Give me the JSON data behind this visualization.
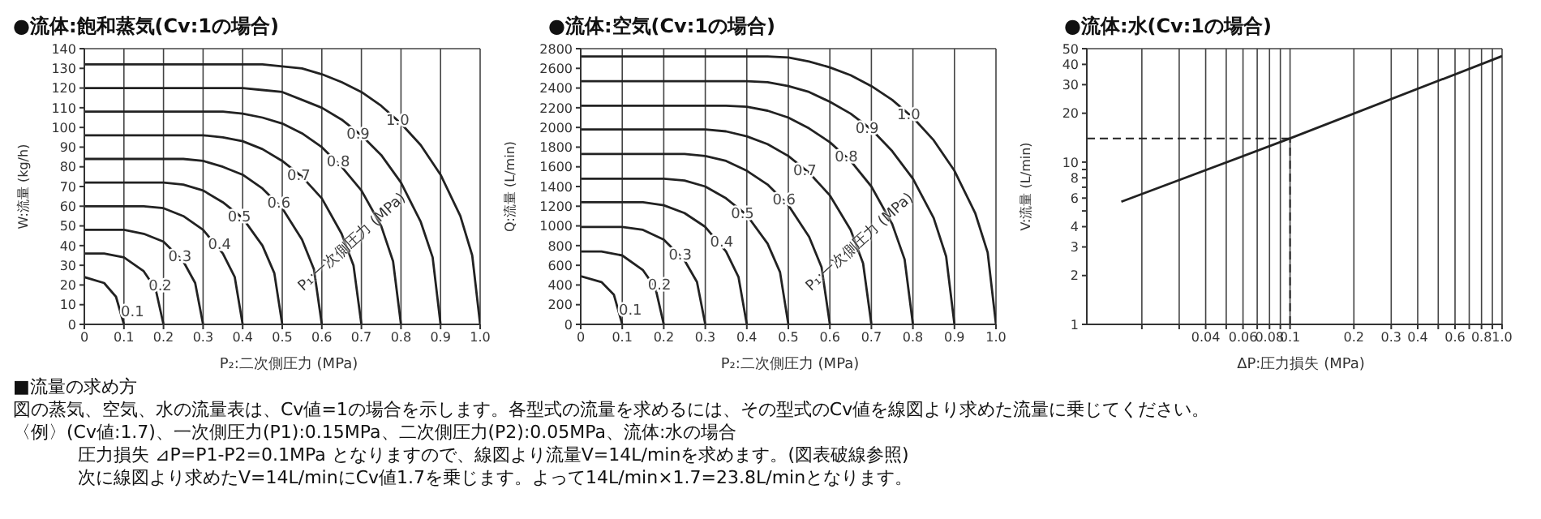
{
  "chart_data": [
    {
      "type": "line",
      "title": "●流体:飽和蒸気(Cv:1の場合)",
      "xlabel": "P₂:二次側圧力 (MPa)",
      "ylabel": "W:流量 (kg/h)",
      "annotations": [
        "P₁:一次側圧力 (MPa)"
      ],
      "xlim": [
        0,
        1
      ],
      "xticks": [
        0,
        0.1,
        0.2,
        0.3,
        0.4,
        0.5,
        0.6,
        0.7,
        0.8,
        0.9,
        {
          "value": 1,
          "label": "1.0"
        }
      ],
      "ylim": [
        0,
        140
      ],
      "yticks": [
        0,
        10,
        20,
        30,
        40,
        50,
        60,
        70,
        80,
        90,
        100,
        110,
        120,
        130,
        140
      ],
      "grid": true,
      "legend": false,
      "marker": "none",
      "series": [
        {
          "name": "0.1",
          "color": "#222222",
          "x": [
            0,
            0.05,
            0.08,
            0.1
          ],
          "values": [
            24,
            21,
            14,
            0
          ]
        },
        {
          "name": "0.2",
          "color": "#222222",
          "x": [
            0,
            0.05,
            0.1,
            0.15,
            0.18,
            0.2
          ],
          "values": [
            36,
            36,
            34,
            27,
            18,
            0
          ]
        },
        {
          "name": "0.3",
          "color": "#222222",
          "x": [
            0,
            0.1,
            0.15,
            0.2,
            0.25,
            0.28,
            0.3
          ],
          "values": [
            48,
            48,
            46,
            42,
            32,
            21,
            0
          ]
        },
        {
          "name": "0.4",
          "color": "#222222",
          "x": [
            0,
            0.15,
            0.2,
            0.25,
            0.3,
            0.35,
            0.38,
            0.4
          ],
          "values": [
            60,
            60,
            59,
            55,
            48,
            36,
            24,
            0
          ]
        },
        {
          "name": "0.5",
          "color": "#222222",
          "x": [
            0,
            0.2,
            0.25,
            0.3,
            0.35,
            0.4,
            0.45,
            0.48,
            0.5
          ],
          "values": [
            72,
            72,
            71,
            68,
            62,
            54,
            40,
            26,
            0
          ]
        },
        {
          "name": "0.6",
          "color": "#222222",
          "x": [
            0,
            0.25,
            0.3,
            0.35,
            0.4,
            0.45,
            0.5,
            0.55,
            0.58,
            0.6
          ],
          "values": [
            84,
            84,
            83,
            80,
            76,
            69,
            59,
            43,
            28,
            0
          ]
        },
        {
          "name": "0.7",
          "color": "#222222",
          "x": [
            0,
            0.3,
            0.35,
            0.4,
            0.45,
            0.5,
            0.55,
            0.6,
            0.65,
            0.68,
            0.7
          ],
          "values": [
            96,
            96,
            95,
            93,
            89,
            83,
            75,
            64,
            46,
            30,
            0
          ]
        },
        {
          "name": "0.8",
          "color": "#222222",
          "x": [
            0,
            0.35,
            0.4,
            0.45,
            0.5,
            0.55,
            0.6,
            0.65,
            0.7,
            0.75,
            0.78,
            0.8
          ],
          "values": [
            108,
            108,
            107,
            105,
            102,
            97,
            90,
            80,
            68,
            50,
            32,
            0
          ]
        },
        {
          "name": "0.9",
          "color": "#222222",
          "x": [
            0,
            0.4,
            0.45,
            0.5,
            0.55,
            0.6,
            0.65,
            0.7,
            0.75,
            0.8,
            0.85,
            0.88,
            0.9
          ],
          "values": [
            120,
            120,
            119,
            118,
            114,
            110,
            104,
            96,
            86,
            72,
            52,
            34,
            0
          ]
        },
        {
          "name": "1.0",
          "color": "#222222",
          "x": [
            0,
            0.45,
            0.5,
            0.55,
            0.6,
            0.65,
            0.7,
            0.75,
            0.8,
            0.85,
            0.9,
            0.95,
            0.98,
            1
          ],
          "values": [
            132,
            132,
            131,
            130,
            127,
            123,
            118,
            111,
            102,
            91,
            76,
            55,
            35,
            0
          ]
        }
      ]
    },
    {
      "type": "line",
      "title": "●流体:空気(Cv:1の場合)",
      "xlabel": "P₂:二次側圧力 (MPa)",
      "ylabel": "Q:流量 (L/min)",
      "annotations": [
        "P₁:一次側圧力 (MPa)"
      ],
      "xlim": [
        0,
        1
      ],
      "xticks": [
        0,
        0.1,
        0.2,
        0.3,
        0.4,
        0.5,
        0.6,
        0.7,
        0.8,
        0.9,
        {
          "value": 1,
          "label": "1.0"
        }
      ],
      "ylim": [
        0,
        2800
      ],
      "yticks": [
        0,
        200,
        400,
        600,
        800,
        1000,
        1200,
        1400,
        1600,
        1800,
        2000,
        2200,
        2400,
        2600,
        2800
      ],
      "grid": true,
      "legend": false,
      "marker": "none",
      "series": [
        {
          "name": "0.1",
          "color": "#222222",
          "x": [
            0,
            0.05,
            0.08,
            0.1
          ],
          "values": [
            490,
            430,
            300,
            0
          ]
        },
        {
          "name": "0.2",
          "color": "#222222",
          "x": [
            0,
            0.05,
            0.1,
            0.15,
            0.18,
            0.2
          ],
          "values": [
            740,
            740,
            700,
            550,
            370,
            0
          ]
        },
        {
          "name": "0.3",
          "color": "#222222",
          "x": [
            0,
            0.1,
            0.15,
            0.2,
            0.25,
            0.28,
            0.3
          ],
          "values": [
            990,
            990,
            960,
            860,
            650,
            430,
            0
          ]
        },
        {
          "name": "0.4",
          "color": "#222222",
          "x": [
            0,
            0.15,
            0.2,
            0.25,
            0.3,
            0.35,
            0.38,
            0.4
          ],
          "values": [
            1240,
            1240,
            1210,
            1130,
            990,
            740,
            480,
            0
          ]
        },
        {
          "name": "0.5",
          "color": "#222222",
          "x": [
            0,
            0.2,
            0.25,
            0.3,
            0.35,
            0.4,
            0.45,
            0.48,
            0.5
          ],
          "values": [
            1480,
            1480,
            1460,
            1400,
            1280,
            1110,
            820,
            530,
            0
          ]
        },
        {
          "name": "0.6",
          "color": "#222222",
          "x": [
            0,
            0.25,
            0.3,
            0.35,
            0.4,
            0.45,
            0.5,
            0.55,
            0.58,
            0.6
          ],
          "values": [
            1730,
            1730,
            1710,
            1660,
            1560,
            1420,
            1210,
            890,
            580,
            0
          ]
        },
        {
          "name": "0.7",
          "color": "#222222",
          "x": [
            0,
            0.3,
            0.35,
            0.4,
            0.45,
            0.5,
            0.55,
            0.6,
            0.65,
            0.68,
            0.7
          ],
          "values": [
            1980,
            1980,
            1960,
            1910,
            1830,
            1710,
            1540,
            1310,
            960,
            620,
            0
          ]
        },
        {
          "name": "0.8",
          "color": "#222222",
          "x": [
            0,
            0.35,
            0.4,
            0.45,
            0.5,
            0.55,
            0.6,
            0.65,
            0.7,
            0.75,
            0.78,
            0.8
          ],
          "values": [
            2220,
            2220,
            2210,
            2170,
            2100,
            1990,
            1850,
            1660,
            1400,
            1020,
            660,
            0
          ]
        },
        {
          "name": "0.9",
          "color": "#222222",
          "x": [
            0,
            0.4,
            0.45,
            0.5,
            0.55,
            0.6,
            0.65,
            0.7,
            0.75,
            0.8,
            0.85,
            0.88,
            0.9
          ],
          "values": [
            2470,
            2470,
            2460,
            2420,
            2360,
            2260,
            2140,
            1980,
            1760,
            1480,
            1080,
            690,
            0
          ]
        },
        {
          "name": "1.0",
          "color": "#222222",
          "x": [
            0,
            0.45,
            0.5,
            0.55,
            0.6,
            0.65,
            0.7,
            0.75,
            0.8,
            0.85,
            0.9,
            0.95,
            0.98,
            1
          ],
          "values": [
            2720,
            2720,
            2710,
            2670,
            2610,
            2530,
            2420,
            2280,
            2100,
            1870,
            1560,
            1130,
            730,
            0
          ]
        }
      ]
    },
    {
      "type": "line",
      "title": "●流体:水(Cv:1の場合)",
      "xlabel": "ΔP:圧力損失 (MPa)",
      "ylabel": "V:流量 (L/min)",
      "log": "xy",
      "xlim": [
        0.011,
        1
      ],
      "xticks": [
        {
          "value": 0.02,
          "label": null
        },
        {
          "value": 0.03,
          "label": null
        },
        0.04,
        {
          "value": 0.05,
          "label": null
        },
        0.06,
        {
          "value": 0.07,
          "label": null
        },
        0.08,
        {
          "value": 0.09,
          "label": null
        },
        0.1,
        0.2,
        0.3,
        0.4,
        {
          "value": 0.5,
          "label": null
        },
        0.6,
        {
          "value": 0.7,
          "label": null
        },
        0.8,
        {
          "value": 0.9,
          "label": null
        },
        {
          "value": 1,
          "label": "1.0"
        }
      ],
      "ylim": [
        1,
        50
      ],
      "yticks": [
        1,
        2,
        3,
        4,
        {
          "value": 5,
          "label": null
        },
        6,
        {
          "value": 7,
          "label": null
        },
        8,
        {
          "value": 9,
          "label": null
        },
        10,
        20,
        30,
        40,
        50
      ],
      "grid": true,
      "legend": false,
      "marker": "none",
      "ref_lines": [
        {
          "axis": "y",
          "value": 14,
          "line_style": "dashed",
          "color": "#222222"
        },
        {
          "axis": "x",
          "value": 0.1,
          "line_style": "dashed",
          "color": "#222222"
        }
      ],
      "series": [
        {
          "color": "#222222",
          "x": [
            0.016,
            0.1,
            1
          ],
          "values": [
            5.7,
            14,
            45
          ]
        }
      ]
    },
    {
      "type": "other",
      "title": "■流量の求め方",
      "annotations": [
        "図の蒸気、空気、水の流量表は、Cv値=1の場合を示します。各型式の流量を求めるには、その型式のCv値を線図より求めた流量に乗じてください。",
        "〈例〉(Cv値:1.7)、一次側圧力(P1):0.15MPa、二次側圧力(P2):0.05MPa、流体:水の場合",
        "圧力損失 ⊿P=P1-P2=0.1MPa となりますので、線図より流量V=14L/minを求めます。(図表破線参照)",
        "次に線図より求めたV=14L/minにCv値1.7を乗じます。よって14L/min×1.7=23.8L/minとなります。"
      ]
    }
  ]
}
